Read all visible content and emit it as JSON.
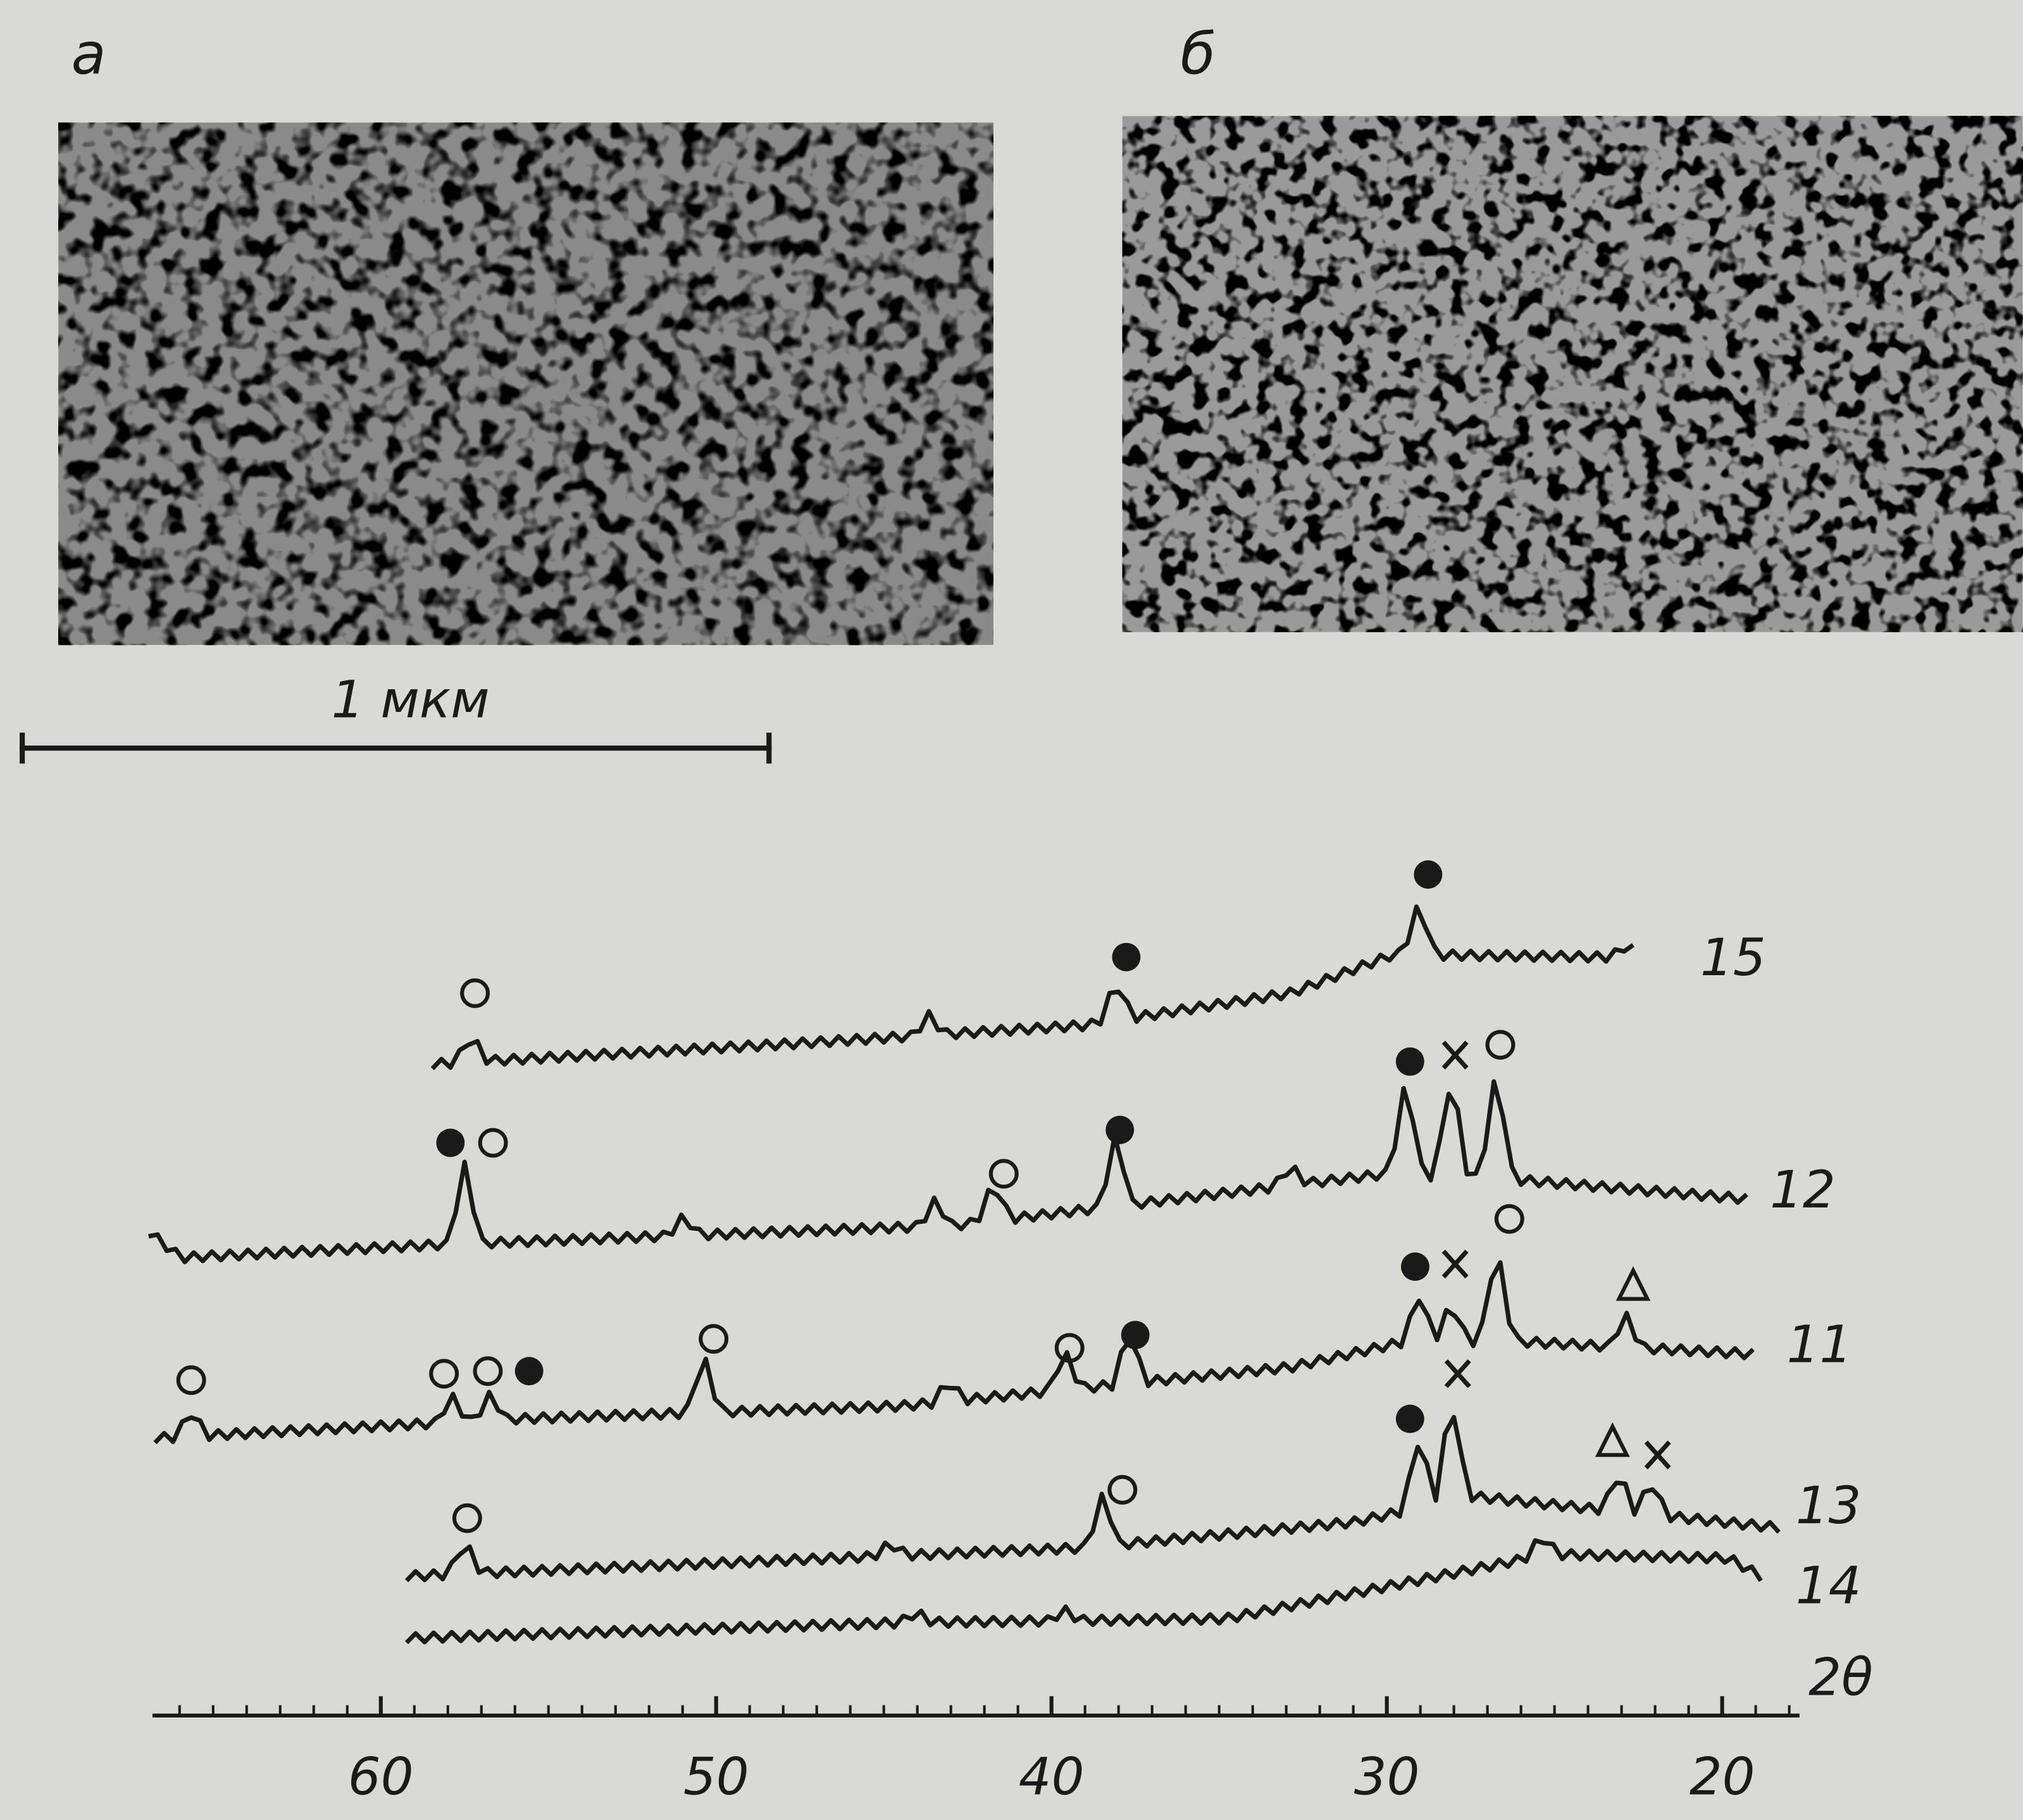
{
  "panels": [
    {
      "label": "а"
    },
    {
      "label": "б"
    }
  ],
  "scale_bar": {
    "label": "1 мкм"
  },
  "diffractograms": {
    "curves": [
      {
        "label": "15"
      },
      {
        "label": "12"
      },
      {
        "label": "11"
      },
      {
        "label": "13"
      },
      {
        "label": "14"
      }
    ],
    "axis": {
      "label": "2θ",
      "ticks": [
        60,
        50,
        40,
        30,
        20
      ]
    }
  }
}
